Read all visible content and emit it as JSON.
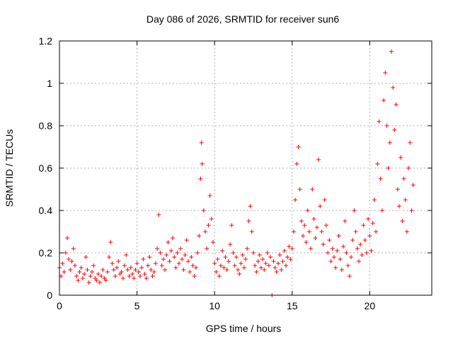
{
  "chart_data": {
    "type": "scatter",
    "title": "Day 086 of 2026, SRMTID for receiver sun6",
    "xlabel": "GPS time / hours",
    "ylabel": "SRMTID / TECUs",
    "xlim": [
      0,
      24
    ],
    "ylim": [
      0,
      1.2
    ],
    "x_ticks": [
      0,
      5,
      10,
      15,
      20
    ],
    "y_ticks": [
      0,
      0.2,
      0.4,
      0.6,
      0.8,
      1,
      1.2
    ],
    "x_tick_labels": [
      "0",
      "5",
      "10",
      "15",
      "20"
    ],
    "y_tick_labels": [
      "0",
      "0.2",
      "0.4",
      "0.6",
      "0.8",
      "1",
      "1.2"
    ],
    "grid": true,
    "marker": "+",
    "color": "#ff0000",
    "series": [
      {
        "name": "SRMTID",
        "points": [
          [
            0.0,
            0.13
          ],
          [
            0.1,
            0.09
          ],
          [
            0.2,
            0.15
          ],
          [
            0.3,
            0.11
          ],
          [
            0.4,
            0.2
          ],
          [
            0.5,
            0.27
          ],
          [
            0.6,
            0.17
          ],
          [
            0.7,
            0.12
          ],
          [
            0.8,
            0.16
          ],
          [
            0.9,
            0.22
          ],
          [
            1.0,
            0.14
          ],
          [
            1.1,
            0.09
          ],
          [
            1.2,
            0.07
          ],
          [
            1.3,
            0.11
          ],
          [
            1.4,
            0.13
          ],
          [
            1.5,
            0.08
          ],
          [
            1.6,
            0.1
          ],
          [
            1.7,
            0.18
          ],
          [
            1.8,
            0.12
          ],
          [
            1.9,
            0.06
          ],
          [
            2.0,
            0.09
          ],
          [
            2.1,
            0.11
          ],
          [
            2.2,
            0.14
          ],
          [
            2.3,
            0.08
          ],
          [
            2.4,
            0.07
          ],
          [
            2.5,
            0.1
          ],
          [
            2.6,
            0.06
          ],
          [
            2.7,
            0.09
          ],
          [
            2.8,
            0.12
          ],
          [
            2.9,
            0.08
          ],
          [
            3.0,
            0.07
          ],
          [
            3.1,
            0.11
          ],
          [
            3.2,
            0.18
          ],
          [
            3.3,
            0.25
          ],
          [
            3.4,
            0.15
          ],
          [
            3.5,
            0.12
          ],
          [
            3.6,
            0.09
          ],
          [
            3.7,
            0.13
          ],
          [
            3.8,
            0.16
          ],
          [
            3.9,
            0.1
          ],
          [
            4.0,
            0.11
          ],
          [
            4.1,
            0.08
          ],
          [
            4.2,
            0.14
          ],
          [
            4.3,
            0.19
          ],
          [
            4.4,
            0.12
          ],
          [
            4.5,
            0.09
          ],
          [
            4.6,
            0.13
          ],
          [
            4.7,
            0.1
          ],
          [
            4.8,
            0.08
          ],
          [
            4.9,
            0.12
          ],
          [
            5.0,
            0.15
          ],
          [
            5.1,
            0.11
          ],
          [
            5.2,
            0.09
          ],
          [
            5.3,
            0.13
          ],
          [
            5.4,
            0.17
          ],
          [
            5.5,
            0.1
          ],
          [
            5.6,
            0.08
          ],
          [
            5.7,
            0.14
          ],
          [
            5.8,
            0.18
          ],
          [
            5.9,
            0.12
          ],
          [
            6.0,
            0.09
          ],
          [
            6.1,
            0.11
          ],
          [
            6.2,
            0.15
          ],
          [
            6.3,
            0.22
          ],
          [
            6.4,
            0.38
          ],
          [
            6.5,
            0.2
          ],
          [
            6.6,
            0.14
          ],
          [
            6.7,
            0.17
          ],
          [
            6.8,
            0.12
          ],
          [
            6.9,
            0.19
          ],
          [
            7.0,
            0.25
          ],
          [
            7.1,
            0.16
          ],
          [
            7.2,
            0.21
          ],
          [
            7.3,
            0.27
          ],
          [
            7.4,
            0.18
          ],
          [
            7.5,
            0.13
          ],
          [
            7.6,
            0.2
          ],
          [
            7.7,
            0.15
          ],
          [
            7.8,
            0.22
          ],
          [
            7.9,
            0.17
          ],
          [
            8.0,
            0.12
          ],
          [
            8.1,
            0.19
          ],
          [
            8.2,
            0.26
          ],
          [
            8.3,
            0.16
          ],
          [
            8.4,
            0.11
          ],
          [
            8.5,
            0.18
          ],
          [
            8.6,
            0.14
          ],
          [
            8.7,
            0.09
          ],
          [
            8.8,
            0.13
          ],
          [
            8.9,
            0.2
          ],
          [
            9.0,
            0.28
          ],
          [
            9.1,
            0.55
          ],
          [
            9.15,
            0.72
          ],
          [
            9.2,
            0.62
          ],
          [
            9.3,
            0.4
          ],
          [
            9.4,
            0.3
          ],
          [
            9.5,
            0.22
          ],
          [
            9.6,
            0.33
          ],
          [
            9.7,
            0.47
          ],
          [
            9.8,
            0.36
          ],
          [
            9.9,
            0.25
          ],
          [
            10.0,
            0.15
          ],
          [
            10.1,
            0.11
          ],
          [
            10.2,
            0.17
          ],
          [
            10.3,
            0.09
          ],
          [
            10.4,
            0.14
          ],
          [
            10.5,
            0.21
          ],
          [
            10.6,
            0.13
          ],
          [
            10.7,
            0.18
          ],
          [
            10.8,
            0.12
          ],
          [
            10.9,
            0.16
          ],
          [
            11.0,
            0.24
          ],
          [
            11.1,
            0.33
          ],
          [
            11.2,
            0.2
          ],
          [
            11.3,
            0.14
          ],
          [
            11.4,
            0.18
          ],
          [
            11.5,
            0.12
          ],
          [
            11.6,
            0.1
          ],
          [
            11.7,
            0.15
          ],
          [
            11.8,
            0.19
          ],
          [
            11.9,
            0.13
          ],
          [
            12.0,
            0.17
          ],
          [
            12.1,
            0.22
          ],
          [
            12.2,
            0.35
          ],
          [
            12.3,
            0.42
          ],
          [
            12.4,
            0.3
          ],
          [
            12.5,
            0.2
          ],
          [
            12.6,
            0.14
          ],
          [
            12.7,
            0.11
          ],
          [
            12.8,
            0.16
          ],
          [
            12.9,
            0.19
          ],
          [
            13.0,
            0.13
          ],
          [
            13.1,
            0.17
          ],
          [
            13.2,
            0.12
          ],
          [
            13.3,
            0.15
          ],
          [
            13.4,
            0.2
          ],
          [
            13.5,
            0.14
          ],
          [
            13.6,
            0.18
          ],
          [
            13.7,
            0.0
          ],
          [
            13.8,
            0.16
          ],
          [
            13.9,
            0.13
          ],
          [
            14.0,
            0.11
          ],
          [
            14.1,
            0.15
          ],
          [
            14.2,
            0.19
          ],
          [
            14.3,
            0.12
          ],
          [
            14.4,
            0.16
          ],
          [
            14.5,
            0.21
          ],
          [
            14.6,
            0.14
          ],
          [
            14.7,
            0.18
          ],
          [
            14.8,
            0.23
          ],
          [
            14.9,
            0.17
          ],
          [
            15.0,
            0.22
          ],
          [
            15.1,
            0.3
          ],
          [
            15.2,
            0.45
          ],
          [
            15.3,
            0.62
          ],
          [
            15.4,
            0.7
          ],
          [
            15.5,
            0.5
          ],
          [
            15.6,
            0.35
          ],
          [
            15.7,
            0.28
          ],
          [
            15.8,
            0.33
          ],
          [
            15.9,
            0.25
          ],
          [
            16.0,
            0.4
          ],
          [
            16.1,
            0.3
          ],
          [
            16.2,
            0.22
          ],
          [
            16.3,
            0.5
          ],
          [
            16.4,
            0.36
          ],
          [
            16.5,
            0.27
          ],
          [
            16.6,
            0.32
          ],
          [
            16.7,
            0.64
          ],
          [
            16.8,
            0.42
          ],
          [
            16.9,
            0.3
          ],
          [
            17.0,
            0.24
          ],
          [
            17.1,
            0.45
          ],
          [
            17.2,
            0.33
          ],
          [
            17.3,
            0.2
          ],
          [
            17.4,
            0.26
          ],
          [
            17.5,
            0.16
          ],
          [
            17.6,
            0.22
          ],
          [
            17.7,
            0.18
          ],
          [
            17.8,
            0.13
          ],
          [
            17.9,
            0.21
          ],
          [
            18.0,
            0.28
          ],
          [
            18.1,
            0.17
          ],
          [
            18.2,
            0.12
          ],
          [
            18.3,
            0.23
          ],
          [
            18.4,
            0.35
          ],
          [
            18.5,
            0.2
          ],
          [
            18.6,
            0.14
          ],
          [
            18.7,
            0.09
          ],
          [
            18.8,
            0.18
          ],
          [
            18.9,
            0.26
          ],
          [
            19.0,
            0.4
          ],
          [
            19.1,
            0.3
          ],
          [
            19.2,
            0.22
          ],
          [
            19.3,
            0.16
          ],
          [
            19.4,
            0.24
          ],
          [
            19.5,
            0.19
          ],
          [
            19.6,
            0.33
          ],
          [
            19.7,
            0.26
          ],
          [
            19.8,
            0.2
          ],
          [
            19.9,
            0.36
          ],
          [
            20.0,
            0.28
          ],
          [
            20.1,
            0.21
          ],
          [
            20.2,
            0.34
          ],
          [
            20.3,
            0.45
          ],
          [
            20.4,
            0.3
          ],
          [
            20.5,
            0.62
          ],
          [
            20.6,
            0.82
          ],
          [
            20.7,
            0.55
          ],
          [
            20.8,
            0.4
          ],
          [
            20.9,
            0.92
          ],
          [
            21.0,
            1.05
          ],
          [
            21.1,
            0.8
          ],
          [
            21.2,
            0.6
          ],
          [
            21.3,
            0.72
          ],
          [
            21.4,
            1.15
          ],
          [
            21.5,
            0.98
          ],
          [
            21.6,
            0.78
          ],
          [
            21.7,
            0.9
          ],
          [
            21.8,
            0.5
          ],
          [
            21.9,
            0.42
          ],
          [
            22.0,
            0.65
          ],
          [
            22.1,
            0.35
          ],
          [
            22.2,
            0.55
          ],
          [
            22.3,
            0.45
          ],
          [
            22.4,
            0.3
          ],
          [
            22.5,
            0.6
          ],
          [
            22.6,
            0.72
          ],
          [
            22.7,
            0.4
          ],
          [
            22.8,
            0.52
          ]
        ]
      }
    ]
  }
}
